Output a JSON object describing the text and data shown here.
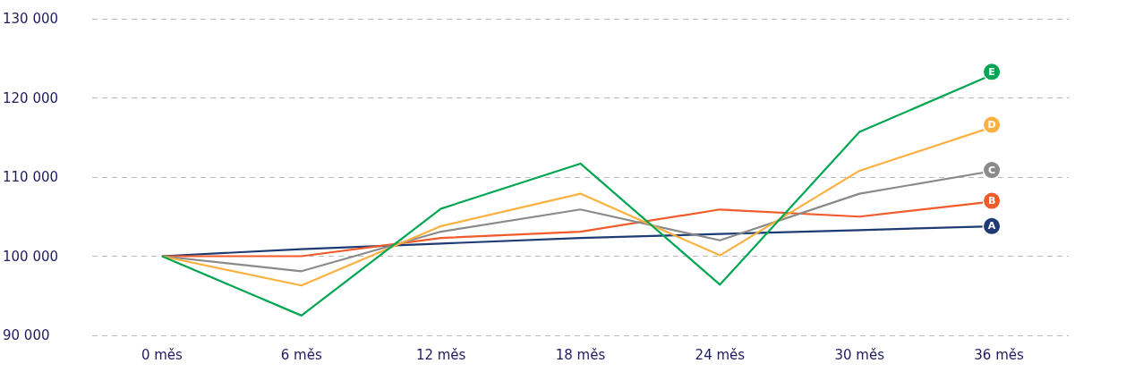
{
  "chart_data": {
    "type": "line",
    "categories": [
      "0 měs",
      "6 měs",
      "12 měs",
      "18 měs",
      "24 měs",
      "30 měs",
      "36 měs"
    ],
    "series": [
      {
        "name": "A",
        "color": "#1f3b73",
        "values": [
          100000,
          100900,
          101600,
          102300,
          102800,
          103300,
          103800
        ]
      },
      {
        "name": "B",
        "color": "#f15a29",
        "values": [
          100000,
          100000,
          102300,
          103100,
          105900,
          105000,
          107000
        ]
      },
      {
        "name": "C",
        "color": "#8a8a8a",
        "values": [
          100000,
          98100,
          103100,
          105900,
          102000,
          107900,
          110900
        ]
      },
      {
        "name": "D",
        "color": "#fbb040",
        "values": [
          100000,
          96300,
          103800,
          107900,
          100100,
          110800,
          116600
        ]
      },
      {
        "name": "E",
        "color": "#00a651",
        "values": [
          100000,
          92500,
          106000,
          111700,
          96400,
          115700,
          123300
        ]
      }
    ],
    "ylim": [
      90000,
      130000
    ],
    "yticks": [
      {
        "value": 90000,
        "label": "90 000"
      },
      {
        "value": 100000,
        "label": "100 000"
      },
      {
        "value": 110000,
        "label": "110 000"
      },
      {
        "value": 120000,
        "label": "120 000"
      },
      {
        "value": 130000,
        "label": "130 000"
      }
    ],
    "grid": "y",
    "legend": false,
    "marker": "none",
    "line_style": "solid"
  }
}
